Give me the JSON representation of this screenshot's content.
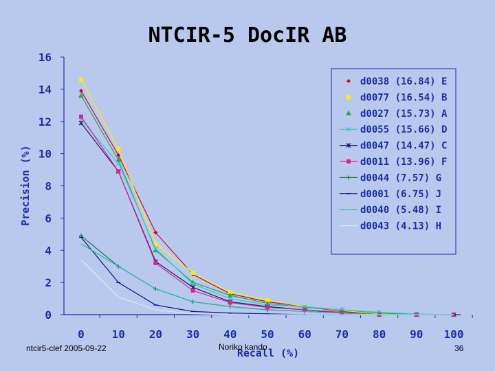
{
  "slide": {
    "title": "NTCIR-5 DocIR AB",
    "footer_left": "ntcir5-clef 2005-09-22",
    "footer_center": "Noriko kando",
    "page_number": "36",
    "background": "#b9c9ee"
  },
  "chart_data": {
    "type": "line",
    "title": "NTCIR-5 DocIR AB",
    "xlabel": "Recall (%)",
    "ylabel": "Precision (%)",
    "x": [
      0,
      10,
      20,
      30,
      40,
      50,
      60,
      70,
      80,
      90,
      100
    ],
    "xlim": [
      0,
      100
    ],
    "ylim": [
      0,
      16
    ],
    "yticks": [
      0,
      2,
      4,
      6,
      8,
      10,
      12,
      14,
      16
    ],
    "legend_position": "top-right",
    "grid": false,
    "series": [
      {
        "name": "d0038 (16.84) E",
        "color": "#cc0033",
        "marker": "diamond",
        "line": true,
        "values": [
          13.9,
          9.9,
          5.1,
          2.5,
          1.3,
          0.8,
          0.5,
          0.2,
          0.05,
          0,
          0
        ]
      },
      {
        "name": "d0077 (16.54) B",
        "color": "#ffee00",
        "marker": "square",
        "line": true,
        "values": [
          14.6,
          10.3,
          4.4,
          2.6,
          1.4,
          0.9,
          0.5,
          0.25,
          0.05,
          0,
          0
        ]
      },
      {
        "name": "d0027 (15.73) A",
        "color": "#22aa44",
        "marker": "triangle",
        "line": true,
        "values": [
          13.6,
          9.6,
          4.0,
          2.0,
          1.2,
          0.7,
          0.45,
          0.3,
          0.1,
          0,
          0
        ]
      },
      {
        "name": "d0055 (15.66) D",
        "color": "#33cccc",
        "marker": "x",
        "line": true,
        "values": [
          12.1,
          9.4,
          4.1,
          1.9,
          1.0,
          0.6,
          0.5,
          0.3,
          0.15,
          0.05,
          0
        ]
      },
      {
        "name": "d0047 (14.47) C",
        "color": "#1a1a66",
        "marker": "star",
        "line": true,
        "values": [
          11.9,
          8.9,
          3.3,
          1.7,
          0.8,
          0.5,
          0.3,
          0.1,
          0,
          0,
          0
        ]
      },
      {
        "name": "d0011 (13.96) F",
        "color": "#dd2299",
        "marker": "square",
        "line": true,
        "values": [
          12.3,
          8.9,
          3.2,
          1.5,
          0.75,
          0.45,
          0.3,
          0.15,
          0,
          0,
          0
        ]
      },
      {
        "name": "d0044 (7.57) G",
        "color": "#227744",
        "marker": "plus",
        "line": true,
        "values": [
          4.9,
          3.0,
          1.6,
          0.8,
          0.5,
          0.3,
          0.2,
          0.1,
          0,
          0,
          0
        ]
      },
      {
        "name": "d0001 (6.75) J",
        "color": "#111188",
        "marker": "dash",
        "line": true,
        "values": [
          4.8,
          2.0,
          0.6,
          0.2,
          0.1,
          0.05,
          0,
          0,
          0,
          0,
          0
        ]
      },
      {
        "name": "d0040 (5.48) I",
        "color": "#22bbaa",
        "marker": "none",
        "line": true,
        "values": [
          4.4,
          3.0,
          1.6,
          0.8,
          0.5,
          0.3,
          0.2,
          0.1,
          0,
          0,
          0
        ]
      },
      {
        "name": "d0043 (4.13) H",
        "color": "#cceeff",
        "marker": "none",
        "line": true,
        "values": [
          3.4,
          1.1,
          0.3,
          0.05,
          0,
          0,
          0,
          0,
          0,
          0,
          0
        ]
      }
    ]
  }
}
